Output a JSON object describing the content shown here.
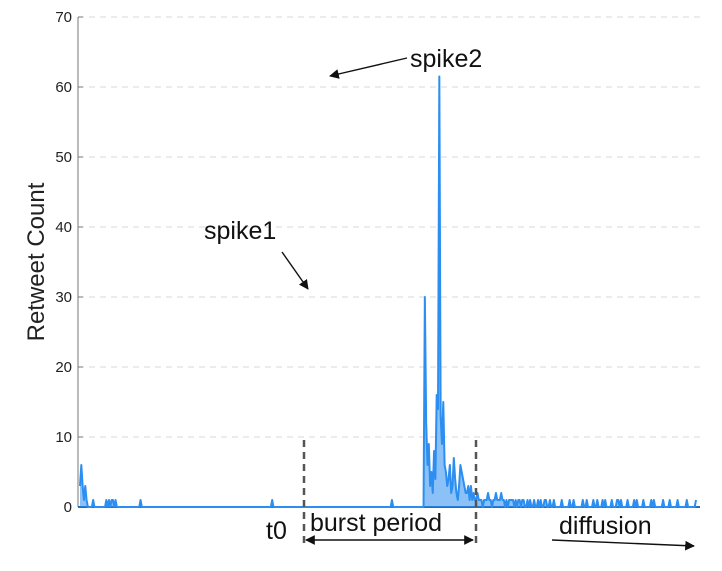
{
  "chart_data": {
    "type": "line",
    "title": "",
    "xlabel": "",
    "ylabel": "Retweet Count",
    "ylim": [
      0,
      70
    ],
    "yticks": [
      0,
      10,
      20,
      30,
      40,
      50,
      60,
      70
    ],
    "grid": true,
    "color": "#2b8ef0",
    "series": [
      {
        "values": [
          3,
          6,
          3,
          1,
          3,
          1,
          0,
          0,
          0,
          0,
          1,
          0,
          0,
          0,
          0,
          0,
          0,
          0,
          0,
          0,
          1,
          0,
          1,
          0,
          1,
          1,
          0,
          1,
          0,
          0,
          0,
          0,
          0,
          0,
          0,
          0,
          0,
          0,
          0,
          0,
          0,
          0,
          0,
          0,
          0,
          0,
          1,
          0,
          0,
          0,
          0,
          0,
          0,
          0,
          0,
          0,
          0,
          0,
          0,
          0,
          0,
          0,
          0,
          0,
          0,
          0,
          0,
          0,
          0,
          0,
          0,
          0,
          0,
          0,
          0,
          0,
          0,
          0,
          0,
          0,
          0,
          0,
          0,
          0,
          0,
          0,
          0,
          0,
          0,
          0,
          0,
          0,
          0,
          0,
          0,
          0,
          0,
          0,
          0,
          0,
          0,
          0,
          0,
          0,
          0,
          0,
          0,
          0,
          0,
          0,
          0,
          0,
          0,
          0,
          0,
          0,
          0,
          0,
          0,
          0,
          0,
          0,
          0,
          0,
          0,
          0,
          0,
          0,
          0,
          0,
          0,
          0,
          0,
          0,
          0,
          0,
          0,
          0,
          0,
          0,
          0,
          0,
          0,
          0,
          0,
          0,
          1,
          0,
          0,
          0,
          0,
          0,
          0,
          0,
          0,
          0,
          0,
          0,
          0,
          0,
          0,
          0,
          0,
          0,
          0,
          0,
          0,
          0,
          0,
          0,
          0,
          0,
          0,
          0,
          0,
          0,
          0,
          0,
          0,
          0,
          0,
          0,
          0,
          0,
          0,
          0,
          0,
          0,
          0,
          0,
          0,
          0,
          0,
          0,
          0,
          0,
          0,
          0,
          0,
          0,
          0,
          0,
          0,
          0,
          0,
          0,
          0,
          0,
          0,
          0,
          0,
          0,
          0,
          0,
          0,
          0,
          0,
          0,
          0,
          0,
          0,
          0,
          0,
          0,
          0,
          0,
          0,
          0,
          0,
          0,
          0,
          0,
          0,
          0,
          0,
          0,
          0,
          1,
          0,
          0,
          0,
          0,
          0,
          0,
          0,
          0,
          0,
          0,
          0,
          0,
          0,
          0,
          0,
          0,
          0,
          0,
          0,
          0,
          0,
          0,
          0,
          0,
          30,
          12,
          6,
          9,
          3,
          5,
          2,
          8,
          4,
          16,
          14,
          61.5,
          13,
          9,
          15,
          6,
          5,
          3,
          4,
          6,
          2,
          3,
          7,
          4,
          2,
          1,
          3,
          6,
          5,
          4,
          3,
          2,
          2,
          3,
          1,
          3,
          1,
          2,
          1,
          1,
          2,
          1,
          1,
          1,
          0,
          1,
          1,
          1,
          2,
          1,
          1,
          0,
          1,
          1,
          2,
          1,
          1,
          1,
          2,
          1,
          1,
          0,
          1,
          0,
          1,
          1,
          1,
          1,
          0,
          1,
          0,
          1,
          1,
          0,
          1,
          1,
          0,
          0,
          1,
          0,
          1,
          0,
          0,
          1,
          0,
          0,
          1,
          0,
          1,
          0,
          0,
          1,
          1,
          0,
          0,
          1,
          0,
          0,
          1,
          0,
          0,
          0,
          0,
          0,
          1,
          0,
          0,
          0,
          0,
          0,
          1,
          0,
          0,
          1,
          0,
          0,
          0,
          0,
          0,
          0,
          1,
          0,
          0,
          1,
          0,
          0,
          0,
          0,
          1,
          0,
          0,
          1,
          0,
          0,
          0,
          1,
          0,
          1,
          0,
          0,
          0,
          0,
          1,
          0,
          0,
          0,
          1,
          1,
          0,
          1,
          0,
          0,
          0,
          0,
          1,
          0,
          0,
          0,
          0,
          1,
          0,
          1,
          0,
          0,
          0,
          0,
          1,
          0,
          0,
          0,
          0,
          0,
          1,
          0,
          1,
          0,
          0,
          0,
          0,
          0,
          0,
          1,
          0,
          0,
          0,
          0,
          1,
          0,
          0,
          0,
          0,
          0,
          1,
          0,
          0,
          0,
          0,
          0,
          0,
          1,
          0,
          0,
          0,
          0,
          0,
          0,
          1
        ]
      }
    ],
    "annotations": {
      "spike1": "spike1",
      "spike2": "spike2",
      "t0": "t0",
      "burst": "burst period",
      "diffusion": "diffusion"
    }
  }
}
